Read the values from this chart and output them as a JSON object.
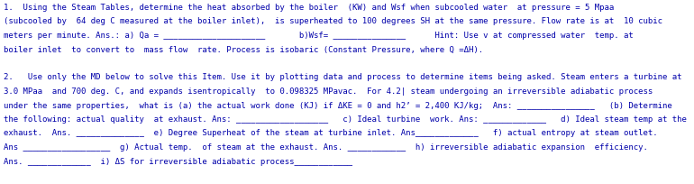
{
  "background_color": "#ffffff",
  "text_color": "#0000aa",
  "font_size": 6.5,
  "lines": [
    "1.  Using the Steam Tables, determine the heat absorbed by the boiler  (KW) and Wsf when subcooled water  at pressure = 5 Mpaa",
    "(subcooled by  64 deg C measured at the boiler inlet),  is superheated to 100 degrees SH at the same pressure. Flow rate is at  10 cubic",
    "meters per minute. Ans.: a) Qa = _____________________       b)Wsf= _______________      Hint: Use v at compressed water  temp. at",
    "boiler inlet  to convert to  mass flow  rate. Process is isobaric (Constant Pressure, where Q =ΔH).",
    "",
    "2.   Use only the MD below to solve this Item. Use it by plotting data and process to determine items being asked. Steam enters a turbine at",
    "3.0 MPaa  and 700 deg. C, and expands isentropically  to 0.098325 MPavac.  For 4.2| steam undergoing an irreversible adiabatic process",
    "under the same properties,  what is (a) the actual work done (KJ) if ΔKE = 0 and h2’ = 2,400 KJ/kg;  Ans: ________________   (b) Determine",
    "the following: actual quality  at exhaust. Ans: ___________________   c) Ideal turbine  work. Ans: _____________   d) Ideal steam temp at the",
    "exhaust.  Ans. ______________  e) Degree Superheat of the steam at turbine inlet. Ans_____________   f) actual entropy at steam outlet.",
    "Ans __________________  g) Actual temp.  of steam at the exhaust. Ans. ____________  h) irreversible adiabatic expansion  efficiency.",
    "Ans. _____________  i) ΔS for irreversible adiabatic process____________"
  ]
}
